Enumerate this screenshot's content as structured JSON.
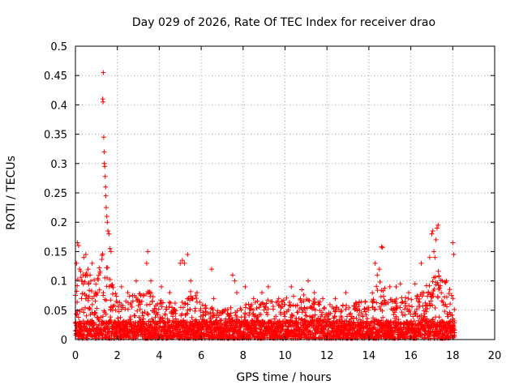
{
  "chart_data": {
    "type": "scatter",
    "title": "Day 029 of 2026, Rate Of TEC Index for receiver drao",
    "xlabel": "GPS time / hours",
    "ylabel": "ROTI / TECUs",
    "xlim": [
      0,
      20
    ],
    "ylim": [
      0,
      0.5
    ],
    "x_ticks": [
      "0",
      "2",
      "4",
      "6",
      "8",
      "10",
      "12",
      "14",
      "16",
      "18",
      "20"
    ],
    "y_ticks": [
      "0",
      "0.05",
      "0.1",
      "0.15",
      "0.2",
      "0.25",
      "0.3",
      "0.35",
      "0.4",
      "0.45",
      "0.5"
    ],
    "grid": true,
    "marker": "plus",
    "color": "#ff0000",
    "series": [
      {
        "x": [
          0.05,
          0.1,
          0.15,
          0.2,
          0.3,
          0.4,
          0.5,
          0.6,
          0.7,
          0.8,
          1.3,
          1.32,
          1.33,
          1.35,
          1.37,
          1.38,
          1.4,
          1.42,
          1.44,
          1.45,
          1.47,
          1.5,
          1.52,
          1.55,
          1.6,
          1.65,
          1.7,
          2.2,
          2.5,
          2.9,
          3.4,
          3.45,
          3.6,
          4.1,
          4.5,
          5.0,
          5.1,
          5.2,
          5.35,
          5.5,
          5.8,
          6.5,
          6.6,
          7.5,
          7.6,
          7.7,
          8.1,
          8.5,
          8.9,
          9.2,
          9.7,
          10.3,
          10.8,
          11.1,
          11.4,
          11.8,
          12.4,
          12.9,
          13.4,
          14.3,
          14.4,
          14.5,
          14.6,
          14.65,
          15.0,
          15.3,
          15.5,
          15.9,
          16.2,
          16.5,
          16.9,
          17.0,
          17.05,
          17.1,
          17.15,
          17.2,
          17.25,
          17.3,
          17.5,
          17.7,
          18.0,
          18.05
        ],
        "y": [
          0.13,
          0.165,
          0.16,
          0.12,
          0.1,
          0.14,
          0.145,
          0.12,
          0.11,
          0.13,
          0.41,
          0.405,
          0.455,
          0.345,
          0.32,
          0.3,
          0.295,
          0.278,
          0.26,
          0.245,
          0.225,
          0.21,
          0.2,
          0.185,
          0.18,
          0.155,
          0.15,
          0.09,
          0.08,
          0.1,
          0.13,
          0.15,
          0.1,
          0.09,
          0.08,
          0.13,
          0.135,
          0.13,
          0.145,
          0.1,
          0.08,
          0.12,
          0.07,
          0.11,
          0.1,
          0.08,
          0.09,
          0.07,
          0.08,
          0.09,
          0.07,
          0.09,
          0.085,
          0.1,
          0.08,
          0.07,
          0.07,
          0.08,
          0.06,
          0.13,
          0.11,
          0.12,
          0.158,
          0.157,
          0.09,
          0.09,
          0.095,
          0.08,
          0.095,
          0.13,
          0.14,
          0.18,
          0.185,
          0.15,
          0.14,
          0.17,
          0.19,
          0.195,
          0.1,
          0.1,
          0.165,
          0.145
        ]
      }
    ],
    "dense_band": {
      "x_range": [
        0.0,
        18.1
      ],
      "base_level": 0.02,
      "envelope_x": [
        0,
        0.3,
        1.0,
        1.3,
        2.0,
        3.0,
        3.5,
        4.0,
        5.0,
        5.5,
        6.0,
        7.0,
        8.0,
        9.0,
        10.0,
        11.0,
        12.0,
        13.0,
        14.0,
        14.5,
        15.0,
        16.0,
        17.0,
        17.3,
        18.0,
        18.1
      ],
      "envelope_y": [
        0.1,
        0.12,
        0.1,
        0.15,
        0.07,
        0.08,
        0.09,
        0.07,
        0.06,
        0.09,
        0.06,
        0.05,
        0.06,
        0.07,
        0.07,
        0.08,
        0.06,
        0.06,
        0.07,
        0.1,
        0.08,
        0.07,
        0.1,
        0.12,
        0.08,
        0.05
      ]
    }
  }
}
